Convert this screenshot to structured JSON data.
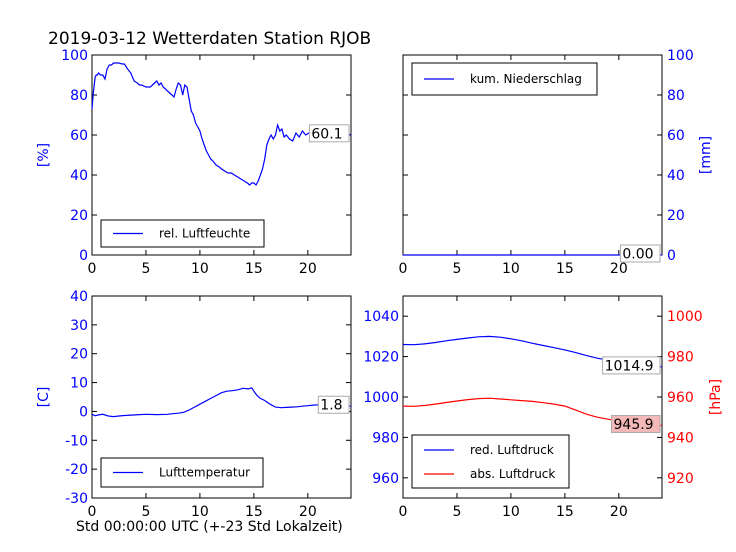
{
  "title": "2019-03-12 Wetterdaten Station RJOB",
  "xlabel": "Std 00:00:00 UTC (+-23 Std Lokalzeit)",
  "colors": {
    "primary": "#0000ff",
    "secondary": "#ff0000",
    "ann_red_bg": "#f4b8b8"
  },
  "chart_data": [
    {
      "id": "humidity",
      "type": "line",
      "xlim": [
        0,
        24
      ],
      "ylim": [
        0,
        100
      ],
      "xticks": [
        0,
        5,
        10,
        15,
        20
      ],
      "yticks": [
        0,
        20,
        40,
        60,
        80,
        100
      ],
      "ylabel": "[%]",
      "ylabel_side": "left",
      "legend": "lower-left",
      "series": [
        {
          "name": "rel. Luftfeuchte",
          "color": "#0000ff",
          "x": [
            0,
            0.1,
            0.2,
            0.3,
            0.4,
            0.5,
            0.6,
            0.8,
            1.0,
            1.2,
            1.4,
            1.5,
            1.6,
            1.8,
            2.0,
            2.2,
            2.5,
            2.8,
            3.0,
            3.3,
            3.6,
            3.9,
            4.2,
            4.4,
            4.6,
            4.8,
            5.0,
            5.2,
            5.4,
            5.6,
            5.8,
            6.0,
            6.2,
            6.4,
            6.6,
            6.8,
            7.0,
            7.2,
            7.4,
            7.6,
            7.8,
            8.0,
            8.2,
            8.4,
            8.6,
            8.8,
            9.0,
            9.2,
            9.4,
            9.6,
            9.8,
            10.0,
            10.2,
            10.4,
            10.6,
            10.8,
            11.0,
            11.2,
            11.5,
            11.8,
            12.0,
            12.3,
            12.6,
            12.9,
            13.2,
            13.5,
            13.8,
            14.1,
            14.4,
            14.6,
            14.8,
            15.0,
            15.2,
            15.4,
            15.6,
            15.8,
            16.0,
            16.2,
            16.4,
            16.6,
            16.8,
            17.0,
            17.2,
            17.4,
            17.6,
            17.8,
            18.0,
            18.3,
            18.6,
            18.9,
            19.2,
            19.5,
            19.8,
            20.1,
            20.4,
            20.7,
            21.0,
            21.3,
            21.6,
            21.9,
            22.2,
            22.5,
            22.8,
            23.1,
            23.4,
            23.7,
            24.0
          ],
          "values": [
            73,
            80,
            85,
            89,
            90,
            90,
            91,
            90,
            90,
            88,
            93,
            94,
            95,
            95,
            96,
            96,
            96,
            95.5,
            95.5,
            93,
            91,
            87,
            86,
            85,
            85,
            84.5,
            84,
            84,
            84,
            85,
            86,
            87,
            85,
            86,
            84,
            83,
            82,
            81,
            80,
            79,
            83,
            86,
            85,
            80,
            85,
            84,
            78,
            72,
            70,
            66,
            64,
            62,
            58,
            55,
            52,
            50,
            48,
            47,
            45,
            44,
            43,
            42,
            41,
            41,
            40,
            39,
            38,
            37,
            36,
            35,
            36,
            36,
            35,
            37,
            40,
            43,
            48,
            55,
            58,
            60,
            58,
            60,
            65,
            62,
            63,
            59,
            60,
            58,
            57,
            61,
            59,
            62,
            60,
            61,
            60,
            58,
            62,
            58,
            60,
            59,
            60,
            58,
            61,
            60,
            60,
            60.5,
            60.1
          ]
        }
      ],
      "annotation": "60.1"
    },
    {
      "id": "precip",
      "type": "line",
      "xlim": [
        0,
        24
      ],
      "ylim": [
        0,
        100
      ],
      "xticks": [
        0,
        5,
        10,
        15,
        20
      ],
      "yticks": [
        0,
        20,
        40,
        60,
        80,
        100
      ],
      "ylabel": "[mm]",
      "ylabel_side": "right",
      "legend": "upper-left",
      "series": [
        {
          "name": "kum. Niederschlag",
          "color": "#0000ff",
          "x": [
            0,
            24
          ],
          "values": [
            0,
            0
          ]
        }
      ],
      "annotation": "0.00"
    },
    {
      "id": "temperature",
      "type": "line",
      "xlim": [
        0,
        24
      ],
      "ylim": [
        -30,
        40
      ],
      "xticks": [
        0,
        5,
        10,
        15,
        20
      ],
      "yticks": [
        -30,
        -20,
        -10,
        0,
        10,
        20,
        30,
        40
      ],
      "ylabel": "[C]",
      "ylabel_side": "left",
      "legend": "lower-left",
      "series": [
        {
          "name": "Lufttemperatur",
          "color": "#0000ff",
          "x": [
            0,
            0.3,
            0.6,
            1.0,
            1.5,
            2.0,
            2.5,
            3.0,
            4.0,
            5.0,
            6.0,
            7.0,
            7.5,
            8.0,
            8.5,
            9.0,
            9.5,
            10.0,
            10.5,
            11.0,
            11.5,
            12.0,
            12.5,
            13.0,
            13.5,
            14.0,
            14.5,
            14.8,
            15.0,
            15.3,
            15.6,
            16.0,
            16.5,
            17.0,
            17.5,
            18.0,
            18.5,
            19.0,
            19.5,
            20.0,
            20.5,
            21.0,
            21.5,
            22.0,
            22.5,
            23.0,
            23.5,
            24.0
          ],
          "values": [
            -1.0,
            -1.5,
            -1.2,
            -1.0,
            -1.6,
            -1.8,
            -1.6,
            -1.4,
            -1.2,
            -1.0,
            -1.1,
            -1.0,
            -0.8,
            -0.6,
            -0.3,
            0.5,
            1.5,
            2.5,
            3.5,
            4.5,
            5.5,
            6.5,
            7.0,
            7.2,
            7.5,
            8.0,
            7.8,
            8.2,
            7.0,
            5.5,
            4.5,
            3.8,
            2.5,
            1.5,
            1.3,
            1.4,
            1.5,
            1.6,
            1.8,
            2.0,
            2.2,
            2.3,
            2.2,
            2.0,
            1.9,
            1.8,
            1.8,
            1.8
          ]
        }
      ],
      "annotation": "1.8"
    },
    {
      "id": "pressure",
      "type": "line",
      "xlim": [
        0,
        24
      ],
      "ylim": [
        950,
        1050
      ],
      "y2lim": [
        910,
        1010
      ],
      "xticks": [
        0,
        5,
        10,
        15,
        20
      ],
      "yticks": [
        960,
        980,
        1000,
        1020,
        1040
      ],
      "y2ticks": [
        920,
        940,
        960,
        980,
        1000
      ],
      "y2label": "[hPa]",
      "legend": "lower-left",
      "series": [
        {
          "name": "red. Luftdruck",
          "color": "#0000ff",
          "axis": "left",
          "x": [
            0,
            1,
            2,
            3,
            4,
            5,
            6,
            7,
            8,
            9,
            10,
            11,
            12,
            13,
            14,
            15,
            16,
            17,
            18,
            19,
            20,
            21,
            22,
            23,
            24
          ],
          "values": [
            1026.0,
            1025.9,
            1026.3,
            1027.0,
            1027.8,
            1028.5,
            1029.2,
            1029.8,
            1030.0,
            1029.6,
            1028.8,
            1027.8,
            1026.6,
            1025.5,
            1024.4,
            1023.3,
            1022.0,
            1020.5,
            1019.2,
            1018.2,
            1017.2,
            1016.4,
            1015.8,
            1015.2,
            1014.9
          ]
        },
        {
          "name": "abs. Luftdruck",
          "color": "#ff0000",
          "axis": "right",
          "x": [
            0,
            1,
            2,
            3,
            4,
            5,
            6,
            7,
            8,
            9,
            10,
            11,
            12,
            13,
            14,
            15,
            16,
            17,
            18,
            19,
            20,
            21,
            22,
            23,
            24
          ],
          "values": [
            955.5,
            955.4,
            955.8,
            956.5,
            957.3,
            958.0,
            958.7,
            959.2,
            959.4,
            959.0,
            958.6,
            958.2,
            957.8,
            957.2,
            956.5,
            955.5,
            953.5,
            951.5,
            950.0,
            949.0,
            948.0,
            947.2,
            946.6,
            946.2,
            945.9
          ]
        }
      ],
      "annotations": [
        "1014.9",
        "945.9"
      ]
    }
  ]
}
